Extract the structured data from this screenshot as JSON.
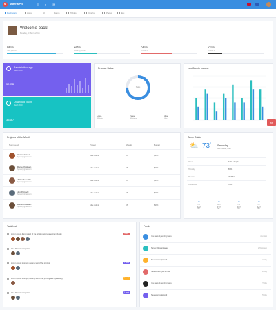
{
  "header": {
    "logo_letter": "M",
    "brand": "MaterialPro"
  },
  "nav": {
    "items": [
      {
        "label": "Dashboard"
      },
      {
        "label": "Apps"
      },
      {
        "label": "UI"
      },
      {
        "label": "Forms"
      },
      {
        "label": "Tables"
      },
      {
        "label": "Charts"
      },
      {
        "label": "Pages"
      },
      {
        "label": "Ext"
      }
    ]
  },
  "welcome": {
    "title": "Welcome back!",
    "subtitle": "Monday, 5 March 2018"
  },
  "stats": [
    {
      "value": "86%",
      "label": "Total product",
      "progress": 0.86,
      "color": "#3ab0d9"
    },
    {
      "value": "40%",
      "label": "Pending product",
      "progress": 0.4,
      "color": "#2bbfbf"
    },
    {
      "value": "56%",
      "label": "Product A",
      "progress": 0.56,
      "color": "#e26a6a"
    },
    {
      "value": "26%",
      "label": "Product B",
      "progress": 0.26,
      "color": "#333333"
    }
  ],
  "bandwidth": {
    "title": "Bandwidth usage",
    "subtitle": "March 2018",
    "value": "50 GB"
  },
  "download": {
    "title": "Download count",
    "subtitle": "March 2018",
    "value": "35487"
  },
  "product_sales": {
    "title": "Product Sales",
    "center": "Sales",
    "legend": [
      {
        "value": "45%",
        "label": "Website"
      },
      {
        "value": "30%",
        "label": "Marketing"
      },
      {
        "value": "25%",
        "label": "Other"
      }
    ]
  },
  "last_month": {
    "title": "Last Month Income"
  },
  "projects": {
    "title": "Projects of the Month",
    "columns": [
      "Team Lead",
      "Project",
      "Weeks",
      "Budget"
    ],
    "rows": [
      {
        "name": "Hanna Gover",
        "email": "hgover@gmail.com",
        "project": "Elite Admin",
        "weeks": "35",
        "budget": "$96K"
      },
      {
        "name": "Daniel Kristeen",
        "email": "hgover@gmail.com",
        "project": "Elite Admin",
        "weeks": "35",
        "budget": "$96K"
      },
      {
        "name": "Julian Josephs",
        "email": "hgover@gmail.com",
        "project": "Elite Admin",
        "weeks": "35",
        "budget": "$96K"
      },
      {
        "name": "Jan Petrovic",
        "email": "hgover@gmail.com",
        "project": "Elite Admin",
        "weeks": "35",
        "budget": "$96K"
      },
      {
        "name": "Daniel Kristeen",
        "email": "hgover@gmail.com",
        "project": "Elite Admin",
        "weeks": "35",
        "budget": "$96K"
      }
    ]
  },
  "weather": {
    "title": "Temp Guide",
    "temp": "73",
    "unit": "°",
    "day": "Saturday",
    "location": "Ahmedabad, India",
    "rows": [
      {
        "k": "Wind",
        "v": "ESE 17 mph"
      },
      {
        "k": "Humidity",
        "v": "83%"
      },
      {
        "k": "Pressure",
        "v": "28.56 in"
      },
      {
        "k": "Cloud Cover",
        "v": "78%"
      }
    ],
    "days": [
      {
        "name": "Tue",
        "temp": "70°"
      },
      {
        "name": "Wed",
        "temp": "72°"
      },
      {
        "name": "Thu",
        "temp": "75°"
      },
      {
        "name": "Fri",
        "temp": "76°"
      }
    ]
  },
  "tasks": {
    "title": "Task List",
    "items": [
      {
        "text": "Lorem ipsum dummy text of the printing and typesetting industry",
        "badge": "Today",
        "badge_color": "#e26a6a"
      },
      {
        "text": "Give Purchase report to",
        "badge": "",
        "badge_color": ""
      },
      {
        "text": "Lorem ipsum is simply dummy text of the printing",
        "badge": "1 week",
        "badge_color": "#7460ee"
      },
      {
        "text": "Lorem ipsum is simply dummy text of the printing and typesetting",
        "badge": "2 week",
        "badge_color": "#ffb22b"
      },
      {
        "text": "Give Purchase report to",
        "badge": "1 week",
        "badge_color": "#7460ee"
      }
    ]
  },
  "feeds": {
    "title": "Feeds",
    "items": [
      {
        "text": "You have 4 pending tasks",
        "time": "Just Now",
        "color": "#3a8ee0"
      },
      {
        "text": "Server #1 overloaded",
        "time": "2 Hours ago",
        "color": "#2bbfbf"
      },
      {
        "text": "New user registered",
        "time": "31 May",
        "color": "#ffb22b"
      },
      {
        "text": "New Version just arrived",
        "time": "30 May",
        "color": "#e26a6a"
      },
      {
        "text": "You have 4 pending tasks",
        "time": "27 May",
        "color": "#222222"
      },
      {
        "text": "New user registered",
        "time": "25 May",
        "color": "#7460ee"
      }
    ]
  },
  "chart_data": {
    "type": "bar",
    "categories": [
      "1",
      "2",
      "3",
      "4",
      "5",
      "6",
      "7",
      "8"
    ],
    "series": [
      {
        "values": [
          5,
          7,
          4,
          6,
          8,
          5,
          9,
          7
        ]
      },
      {
        "values": [
          3,
          6,
          2,
          5,
          4,
          4,
          7,
          3
        ]
      }
    ],
    "ylim": [
      0,
      10
    ],
    "colors": [
      "#2bbfbf",
      "#3a8ee0"
    ]
  },
  "donut": {
    "values": [
      45,
      30,
      25
    ],
    "colors": [
      "#3a8ee0",
      "#9fc8f2",
      "#e5e8ee"
    ]
  }
}
